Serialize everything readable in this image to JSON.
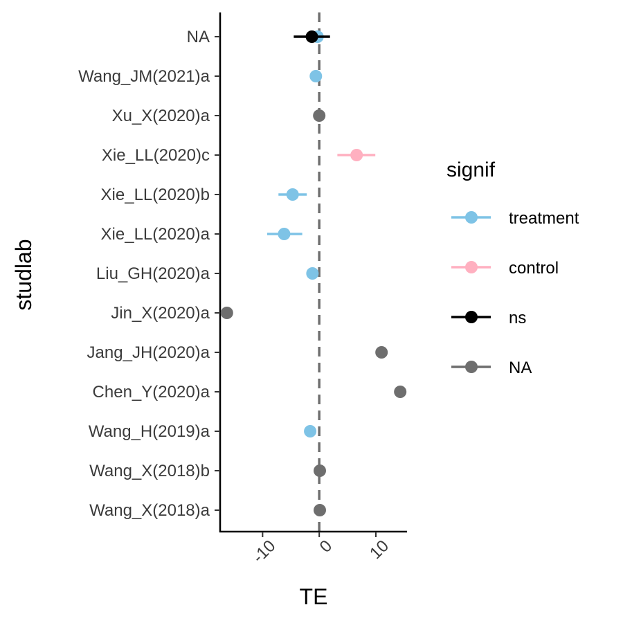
{
  "chart_data": {
    "type": "scatter",
    "subtype": "forest-plot",
    "xlabel": "TE",
    "ylabel": "studlab",
    "xlim": [
      -17.5,
      15.5
    ],
    "x_ticks": [
      -10,
      0,
      10
    ],
    "x_tick_labels": [
      "-10",
      "0",
      "10"
    ],
    "reference_line": 0,
    "categories": [
      "NA",
      "Wang_JM(2021)a",
      "Xu_X(2020)a",
      "Xie_LL(2020)c",
      "Xie_LL(2020)b",
      "Xie_LL(2020)a",
      "Liu_GH(2020)a",
      "Jin_X(2020)a",
      "Jang_JH(2020)a",
      "Chen_Y(2020)a",
      "Wang_H(2019)a",
      "Wang_X(2018)b",
      "Wang_X(2018)a"
    ],
    "points": [
      {
        "study": "NA",
        "group": "treatment",
        "te": -0.3,
        "lower": -0.3,
        "upper": -0.3
      },
      {
        "study": "NA",
        "group": "ns",
        "te": -1.3,
        "lower": -4.5,
        "upper": 1.9
      },
      {
        "study": "Wang_JM(2021)a",
        "group": "treatment",
        "te": -0.6,
        "lower": -0.6,
        "upper": -0.6
      },
      {
        "study": "Xu_X(2020)a",
        "group": "NA",
        "te": 0.0,
        "lower": 0.0,
        "upper": 0.0
      },
      {
        "study": "Xie_LL(2020)c",
        "group": "control",
        "te": 6.6,
        "lower": 3.2,
        "upper": 9.9
      },
      {
        "study": "Xie_LL(2020)b",
        "group": "treatment",
        "te": -4.7,
        "lower": -7.2,
        "upper": -2.2
      },
      {
        "study": "Xie_LL(2020)a",
        "group": "treatment",
        "te": -6.2,
        "lower": -9.2,
        "upper": -3.0
      },
      {
        "study": "Liu_GH(2020)a",
        "group": "treatment",
        "te": -1.2,
        "lower": -2.2,
        "upper": -0.2
      },
      {
        "study": "Jin_X(2020)a",
        "group": "NA",
        "te": -16.3,
        "lower": -16.3,
        "upper": -16.3
      },
      {
        "study": "Jang_JH(2020)a",
        "group": "NA",
        "te": 11.0,
        "lower": 11.0,
        "upper": 11.0
      },
      {
        "study": "Chen_Y(2020)a",
        "group": "NA",
        "te": 14.3,
        "lower": 14.3,
        "upper": 14.3
      },
      {
        "study": "Wang_H(2019)a",
        "group": "treatment",
        "te": -1.6,
        "lower": -2.3,
        "upper": -0.9
      },
      {
        "study": "Wang_X(2018)b",
        "group": "NA",
        "te": 0.1,
        "lower": 0.1,
        "upper": 0.1
      },
      {
        "study": "Wang_X(2018)a",
        "group": "NA",
        "te": 0.1,
        "lower": 0.1,
        "upper": 0.1
      }
    ],
    "legend": {
      "title": "signif",
      "entries": [
        {
          "label": "treatment",
          "color": "#7ec3e6"
        },
        {
          "label": "control",
          "color": "#ffb0c0"
        },
        {
          "label": "ns",
          "color": "#000000"
        },
        {
          "label": "NA",
          "color": "#6e6e6e"
        }
      ]
    },
    "grid": false,
    "legend_position": "right"
  }
}
